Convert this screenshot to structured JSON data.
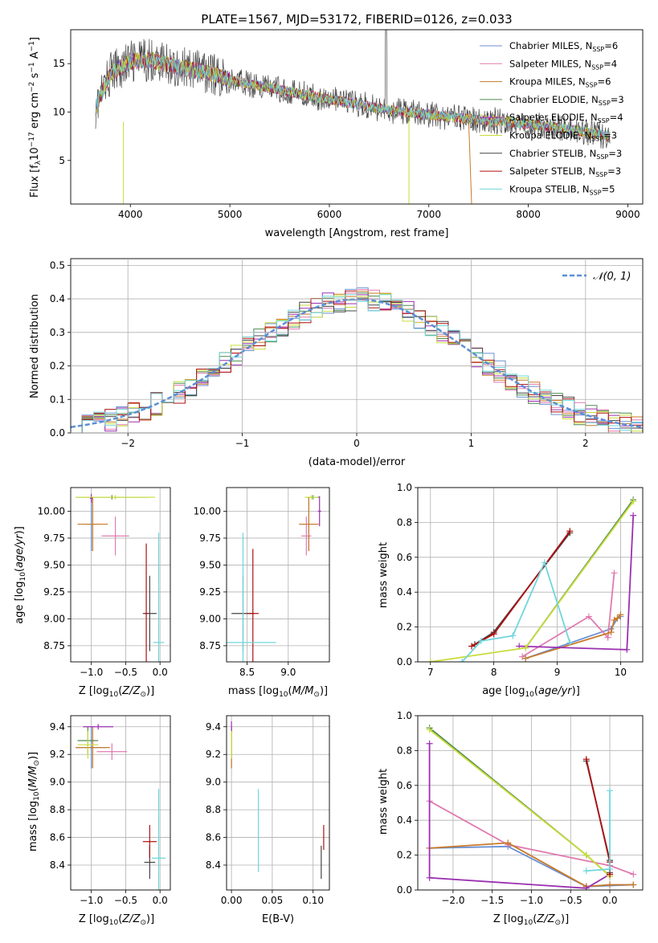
{
  "colors": {
    "chabrier_miles": "#6a8fd4",
    "salpeter_miles": "#e07ab0",
    "kroupa_miles": "#c87a2a",
    "chabrier_elodie": "#4f8a4f",
    "salpeter_elodie": "#9b30b0",
    "kroupa_elodie": "#c8dc3a",
    "chabrier_stelib": "#444444",
    "salpeter_stelib": "#b01010",
    "kroupa_stelib": "#6fd6dc",
    "normal": "#5b8fd6"
  },
  "chart_data": [
    {
      "type": "line",
      "title": "PLATE=1567, MJD=53172, FIBERID=0126, z=0.033",
      "xlabel": "wavelength [Angstrom, rest frame]",
      "ylabel_parts": [
        "Flux [f",
        "λ",
        "10",
        "−17",
        " erg cm",
        "−2",
        " s",
        "−1",
        " A",
        "−1",
        "]"
      ],
      "xlim": [
        3400,
        9150
      ],
      "ylim": [
        0.5,
        18.5
      ],
      "xticks": [
        "4000",
        "5000",
        "6000",
        "7000",
        "8000",
        "9000"
      ],
      "xtick_values": [
        4000,
        5000,
        6000,
        7000,
        8000,
        9000
      ],
      "yticks": [
        "5",
        "10",
        "15"
      ],
      "ytick_values": [
        5,
        10,
        15
      ],
      "legend_placement": "upper-right",
      "legend": [
        {
          "pre": "Chabrier MILES, N",
          "sub": "SSP",
          "post": "=6",
          "color_key": "chabrier_miles"
        },
        {
          "pre": "Salpeter MILES, N",
          "sub": "SSP",
          "post": "=4",
          "color_key": "salpeter_miles"
        },
        {
          "pre": "Kroupa MILES, N",
          "sub": "SSP",
          "post": "=6",
          "color_key": "kroupa_miles"
        },
        {
          "pre": "Chabrier ELODIE, N",
          "sub": "SSP",
          "post": "=3",
          "color_key": "chabrier_elodie"
        },
        {
          "pre": "Salpeter ELODIE, N",
          "sub": "SSP",
          "post": "=4",
          "color_key": "salpeter_elodie"
        },
        {
          "pre": "Kroupa ELODIE, N",
          "sub": "SSP",
          "post": "=3",
          "color_key": "kroupa_elodie"
        },
        {
          "pre": "Chabrier STELIB, N",
          "sub": "SSP",
          "post": "=3",
          "color_key": "chabrier_stelib"
        },
        {
          "pre": "Salpeter STELIB, N",
          "sub": "SSP",
          "post": "=3",
          "color_key": "salpeter_stelib"
        },
        {
          "pre": "Kroupa STELIB, N",
          "sub": "SSP",
          "post": "=5",
          "color_key": "kroupa_stelib"
        }
      ],
      "continuum": {
        "x": [
          3650,
          3800,
          4000,
          4200,
          4500,
          4800,
          5000,
          5300,
          5600,
          6000,
          6300,
          6600,
          7000,
          7400,
          7800,
          8200,
          8600,
          8800
        ],
        "y": [
          10.5,
          14.0,
          15.2,
          15.4,
          14.6,
          14.0,
          13.3,
          12.7,
          12.1,
          11.3,
          10.8,
          10.2,
          9.7,
          9.3,
          9.0,
          8.5,
          7.9,
          7.5
        ]
      }
    },
    {
      "type": "histogram",
      "xlabel": "(data-model)/error",
      "ylabel": "Normed distribution",
      "xlim": [
        -2.5,
        2.5
      ],
      "ylim": [
        0,
        0.52
      ],
      "xticks": [
        "−2",
        "−1",
        "0",
        "1",
        "2"
      ],
      "xtick_values": [
        -2,
        -1,
        0,
        1,
        2
      ],
      "yticks": [
        "0.0",
        "0.1",
        "0.2",
        "0.3",
        "0.4",
        "0.5"
      ],
      "ytick_values": [
        0,
        0.1,
        0.2,
        0.3,
        0.4,
        0.5
      ],
      "grid": true,
      "bin_width": 0.1,
      "legend_label": "𝒩(0, 1)",
      "legend_placement": "upper-right"
    },
    {
      "type": "scatter",
      "name": "age-vs-Z",
      "xlabel": "Z [log10(Z/Z⊙)]",
      "ylabel": "age  [log10(age/yr)]",
      "xlim": [
        -1.3,
        0.15
      ],
      "ylim": [
        8.6,
        10.22
      ],
      "xticks": [
        "−1.0",
        "−0.5",
        "0.0"
      ],
      "xtick_values": [
        -1.0,
        -0.5,
        0.0
      ],
      "yticks": [
        "8.75",
        "9.00",
        "9.25",
        "9.50",
        "9.75",
        "10.00"
      ],
      "ytick_values": [
        8.75,
        9.0,
        9.25,
        9.5,
        9.75,
        10.0
      ],
      "grid": true,
      "points": [
        {
          "k": "chabrier_miles",
          "x": -1.0,
          "y": 9.88,
          "xerr": 0.1,
          "yerr": 0.25
        },
        {
          "k": "salpeter_miles",
          "x": -0.65,
          "y": 9.77,
          "xerr": 0.2,
          "yerr": 0.18
        },
        {
          "k": "kroupa_miles",
          "x": -0.98,
          "y": 9.88,
          "xerr": 0.22,
          "yerr": 0.25
        },
        {
          "k": "chabrier_elodie",
          "x": -0.7,
          "y": 10.13,
          "xerr": 0.52,
          "yerr": 0.02
        },
        {
          "k": "salpeter_elodie",
          "x": -1.0,
          "y": 10.12,
          "xerr": 0.02,
          "yerr": 0.04
        },
        {
          "k": "kroupa_elodie",
          "x": -0.65,
          "y": 10.13,
          "xerr": 0.58,
          "yerr": 0.02
        },
        {
          "k": "chabrier_stelib",
          "x": -0.15,
          "y": 9.05,
          "xerr": 0.1,
          "yerr": 0.35
        },
        {
          "k": "salpeter_stelib",
          "x": -0.2,
          "y": 9.05,
          "xerr": 0.02,
          "yerr": 0.65
        },
        {
          "k": "kroupa_stelib",
          "x": -0.02,
          "y": 8.78,
          "xerr": 0.08,
          "yerr": 1.02
        }
      ]
    },
    {
      "type": "scatter",
      "name": "age-vs-mass",
      "xlabel": "mass [log10(M/M⊙)]",
      "ylabel": "",
      "xlim": [
        8.25,
        9.5
      ],
      "ylim": [
        8.6,
        10.22
      ],
      "xticks": [
        "8.5",
        "9.0"
      ],
      "xtick_values": [
        8.5,
        9.0
      ],
      "yticks": [
        "8.75",
        "9.00",
        "9.25",
        "9.50",
        "9.75",
        "10.00"
      ],
      "ytick_values": [
        8.75,
        9.0,
        9.25,
        9.5,
        9.75,
        10.0
      ],
      "grid": true,
      "points": [
        {
          "k": "chabrier_miles",
          "x": 9.25,
          "y": 9.88,
          "xerr": 0.1,
          "yerr": 0.25
        },
        {
          "k": "salpeter_miles",
          "x": 9.22,
          "y": 9.77,
          "xerr": 0.06,
          "yerr": 0.18
        },
        {
          "k": "kroupa_miles",
          "x": 9.25,
          "y": 9.88,
          "xerr": 0.12,
          "yerr": 0.25
        },
        {
          "k": "chabrier_elodie",
          "x": 9.3,
          "y": 10.13,
          "xerr": 0.08,
          "yerr": 0.02
        },
        {
          "k": "salpeter_elodie",
          "x": 9.38,
          "y": 10.0,
          "xerr": 0.02,
          "yerr": 0.14
        },
        {
          "k": "kroupa_elodie",
          "x": 9.28,
          "y": 10.13,
          "xerr": 0.08,
          "yerr": 0.02
        },
        {
          "k": "chabrier_stelib",
          "x": 8.45,
          "y": 9.05,
          "xerr": 0.14,
          "yerr": 0.35
        },
        {
          "k": "salpeter_stelib",
          "x": 8.57,
          "y": 9.05,
          "xerr": 0.07,
          "yerr": 0.6
        },
        {
          "k": "kroupa_stelib",
          "x": 8.45,
          "y": 8.78,
          "xerr": 0.4,
          "yerr": 1.02
        }
      ]
    },
    {
      "type": "line",
      "name": "mass-weight-vs-age",
      "xlabel": "age  [log10(age/yr)]",
      "ylabel": "mass weight",
      "xlim": [
        6.8,
        10.35
      ],
      "ylim": [
        0,
        1.0
      ],
      "xticks": [
        "7",
        "8",
        "9",
        "10"
      ],
      "xtick_values": [
        7,
        8,
        9,
        10
      ],
      "yticks": [
        "0.0",
        "0.2",
        "0.4",
        "0.6",
        "0.8",
        "1.0"
      ],
      "ytick_values": [
        0,
        0.2,
        0.4,
        0.6,
        0.8,
        1.0
      ],
      "grid": true,
      "series": [
        {
          "k": "chabrier_miles",
          "x": [
            8.5,
            9.85,
            9.95,
            10.0
          ],
          "y": [
            0.02,
            0.19,
            0.25,
            0.26
          ]
        },
        {
          "k": "salpeter_miles",
          "x": [
            8.45,
            9.5,
            9.8,
            9.9
          ],
          "y": [
            0.03,
            0.26,
            0.14,
            0.51
          ]
        },
        {
          "k": "kroupa_miles",
          "x": [
            8.5,
            9.85,
            9.9,
            9.95,
            10.0
          ],
          "y": [
            0.02,
            0.17,
            0.24,
            0.25,
            0.27
          ]
        },
        {
          "k": "chabrier_elodie",
          "x": [
            8.5,
            10.2
          ],
          "y": [
            0.08,
            0.93
          ]
        },
        {
          "k": "salpeter_elodie",
          "x": [
            8.4,
            10.1,
            10.2
          ],
          "y": [
            0.09,
            0.07,
            0.84
          ]
        },
        {
          "k": "kroupa_elodie",
          "x": [
            7.0,
            8.5,
            10.2
          ],
          "y": [
            0.0,
            0.08,
            0.92
          ]
        },
        {
          "k": "chabrier_stelib",
          "x": [
            7.7,
            8.0,
            9.2
          ],
          "y": [
            0.1,
            0.17,
            0.74
          ]
        },
        {
          "k": "salpeter_stelib",
          "x": [
            7.65,
            8.0,
            9.2
          ],
          "y": [
            0.09,
            0.16,
            0.75
          ]
        },
        {
          "k": "kroupa_stelib",
          "x": [
            7.5,
            7.8,
            8.3,
            8.8,
            9.2
          ],
          "y": [
            0.0,
            0.12,
            0.15,
            0.57,
            0.11
          ]
        }
      ]
    },
    {
      "type": "scatter",
      "name": "mass-vs-Z",
      "xlabel": "Z [log10(Z/Z⊙)]",
      "ylabel": "mass [log10(M/M⊙)]",
      "xlim": [
        -1.3,
        0.15
      ],
      "ylim": [
        8.22,
        9.48
      ],
      "xticks": [
        "−1.0",
        "−0.5",
        "0.0"
      ],
      "xtick_values": [
        -1.0,
        -0.5,
        0.0
      ],
      "yticks": [
        "8.4",
        "8.6",
        "8.8",
        "9.0",
        "9.2",
        "9.4"
      ],
      "ytick_values": [
        8.4,
        8.6,
        8.8,
        9.0,
        9.2,
        9.4
      ],
      "grid": true,
      "points": [
        {
          "k": "chabrier_miles",
          "x": -1.0,
          "y": 9.25,
          "xerr": 0.22,
          "yerr": 0.15
        },
        {
          "k": "salpeter_miles",
          "x": -0.7,
          "y": 9.22,
          "xerr": 0.22,
          "yerr": 0.06
        },
        {
          "k": "kroupa_miles",
          "x": -0.98,
          "y": 9.25,
          "xerr": 0.25,
          "yerr": 0.15
        },
        {
          "k": "chabrier_elodie",
          "x": -1.05,
          "y": 9.3,
          "xerr": 0.15,
          "yerr": 0.1
        },
        {
          "k": "salpeter_elodie",
          "x": -0.9,
          "y": 9.4,
          "xerr": 0.22,
          "yerr": 0.02
        },
        {
          "k": "kroupa_elodie",
          "x": -1.05,
          "y": 9.27,
          "xerr": 0.15,
          "yerr": 0.1
        },
        {
          "k": "chabrier_stelib",
          "x": -0.15,
          "y": 8.42,
          "xerr": 0.08,
          "yerr": 0.12
        },
        {
          "k": "salpeter_stelib",
          "x": -0.15,
          "y": 8.57,
          "xerr": 0.1,
          "yerr": 0.12
        },
        {
          "k": "kroupa_stelib",
          "x": -0.02,
          "y": 8.45,
          "xerr": 0.1,
          "yerr": 0.5
        }
      ]
    },
    {
      "type": "scatter",
      "name": "mass-vs-ebv",
      "xlabel": "E(B-V)",
      "ylabel": "",
      "xlim": [
        -0.006,
        0.12
      ],
      "ylim": [
        8.22,
        9.48
      ],
      "xticks": [
        "0.00",
        "0.05",
        "0.10"
      ],
      "xtick_values": [
        0.0,
        0.05,
        0.1
      ],
      "yticks": [
        "8.4",
        "8.6",
        "8.8",
        "9.0",
        "9.2",
        "9.4"
      ],
      "ytick_values": [
        8.4,
        8.6,
        8.8,
        9.0,
        9.2,
        9.4
      ],
      "grid": true,
      "points": [
        {
          "k": "chabrier_miles",
          "x": 0.0,
          "y": 9.25,
          "xerr": 0.0,
          "yerr": 0.15
        },
        {
          "k": "kroupa_miles",
          "x": 0.0,
          "y": 9.25,
          "xerr": 0.0,
          "yerr": 0.15
        },
        {
          "k": "salpeter_elodie",
          "x": 0.0,
          "y": 9.4,
          "xerr": 0.0,
          "yerr": 0.04
        },
        {
          "k": "kroupa_elodie",
          "x": 0.0,
          "y": 9.27,
          "xerr": 0.0,
          "yerr": 0.1
        },
        {
          "k": "kroupa_stelib",
          "x": 0.033,
          "y": 8.65,
          "xerr": 0.0,
          "yerr": 0.3
        },
        {
          "k": "chabrier_stelib",
          "x": 0.11,
          "y": 8.42,
          "xerr": 0.0,
          "yerr": 0.12
        },
        {
          "k": "salpeter_stelib",
          "x": 0.113,
          "y": 8.6,
          "xerr": 0.0,
          "yerr": 0.09
        }
      ]
    },
    {
      "type": "line",
      "name": "mass-weight-vs-Z",
      "xlabel": "Z [log10(Z/Z⊙)]",
      "ylabel": "mass weight",
      "xlim": [
        -2.45,
        0.42
      ],
      "ylim": [
        0,
        1.0
      ],
      "xticks": [
        "−2.0",
        "−1.5",
        "−1.0",
        "−0.5",
        "0.0"
      ],
      "xtick_values": [
        -2.0,
        -1.5,
        -1.0,
        -0.5,
        0.0
      ],
      "yticks": [
        "0.0",
        "0.2",
        "0.4",
        "0.6",
        "0.8",
        "1.0"
      ],
      "ytick_values": [
        0,
        0.2,
        0.4,
        0.6,
        0.8,
        1.0
      ],
      "grid": true,
      "series": [
        {
          "k": "chabrier_miles",
          "x": [
            -2.3,
            -1.3,
            -0.3,
            0.3
          ],
          "y": [
            0.24,
            0.25,
            0.02,
            0.03
          ]
        },
        {
          "k": "salpeter_miles",
          "x": [
            -2.3,
            -1.3,
            0.0,
            0.3
          ],
          "y": [
            0.51,
            0.26,
            0.14,
            0.09
          ]
        },
        {
          "k": "kroupa_miles",
          "x": [
            -2.3,
            -1.3,
            -0.3,
            0.0,
            0.3
          ],
          "y": [
            0.24,
            0.27,
            0.02,
            0.03,
            0.03
          ]
        },
        {
          "k": "chabrier_elodie",
          "x": [
            -2.3,
            -0.3,
            0.0
          ],
          "y": [
            0.93,
            0.2,
            0.08
          ]
        },
        {
          "k": "salpeter_elodie",
          "x": [
            -2.3,
            -2.3,
            -0.3,
            0.0
          ],
          "y": [
            0.84,
            0.07,
            0.01,
            0.09
          ]
        },
        {
          "k": "kroupa_elodie",
          "x": [
            -2.3,
            -0.3,
            0.0
          ],
          "y": [
            0.92,
            0.2,
            0.08
          ]
        },
        {
          "k": "chabrier_stelib",
          "x": [
            -0.3,
            0.0,
            0.0
          ],
          "y": [
            0.74,
            0.17,
            0.1
          ]
        },
        {
          "k": "salpeter_stelib",
          "x": [
            -0.3,
            0.0,
            0.0
          ],
          "y": [
            0.75,
            0.16,
            0.09
          ]
        },
        {
          "k": "kroupa_stelib",
          "x": [
            0.0,
            0.0,
            -0.3
          ],
          "y": [
            0.57,
            0.12,
            0.11
          ]
        }
      ]
    }
  ]
}
